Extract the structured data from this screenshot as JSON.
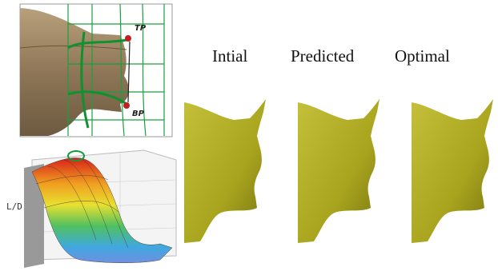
{
  "control_box": {
    "top_point": "TP",
    "bottom_point": "BP"
  },
  "surface_plot": {
    "axis_label": "L/D"
  },
  "shapes": [
    {
      "label": "Intial"
    },
    {
      "label": "Predicted"
    },
    {
      "label": "Optimal"
    }
  ]
}
